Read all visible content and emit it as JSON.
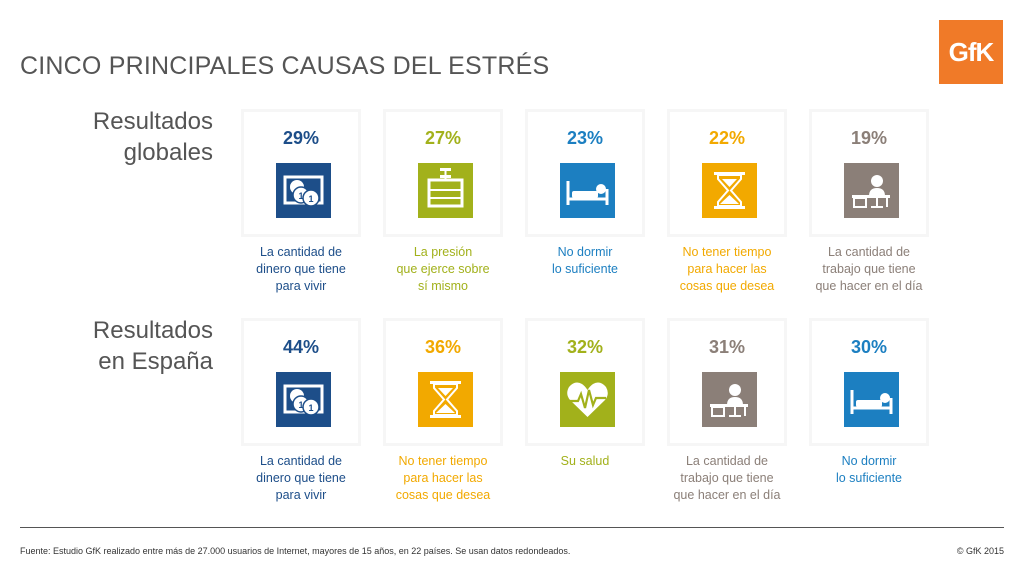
{
  "title": "CINCO PRINCIPALES CAUSAS DEL ESTRÉS",
  "logo": "GfK",
  "colors": {
    "money": "#1d4e89",
    "pressure": "#a2b11b",
    "sleep": "#1c7fc1",
    "time": "#f2a900",
    "work": "#8b7f78",
    "health": "#a2b11b"
  },
  "global": {
    "label_line1": "Resultados",
    "label_line2": "globales",
    "items": [
      {
        "pct": "29%",
        "icon": "money-icon",
        "color": "#1d4e89",
        "line1": "La cantidad de",
        "line2": "dinero que tiene",
        "line3": "para vivir"
      },
      {
        "pct": "27%",
        "icon": "pressure-icon",
        "color": "#a2b11b",
        "line1": "La presión",
        "line2": "que ejerce sobre",
        "line3": "sí mismo"
      },
      {
        "pct": "23%",
        "icon": "sleep-icon",
        "color": "#1c7fc1",
        "line1": "No dormir",
        "line2": "lo suficiente",
        "line3": ""
      },
      {
        "pct": "22%",
        "icon": "hourglass-icon",
        "color": "#f2a900",
        "line1": "No tener tiempo",
        "line2": "para hacer las",
        "line3": "cosas que desea"
      },
      {
        "pct": "19%",
        "icon": "desk-work-icon",
        "color": "#8b7f78",
        "line1": "La cantidad de",
        "line2": "trabajo que tiene",
        "line3": "que hacer en el día"
      }
    ]
  },
  "spain": {
    "label_line1": "Resultados",
    "label_line2": "en España",
    "items": [
      {
        "pct": "44%",
        "icon": "money-icon",
        "color": "#1d4e89",
        "line1": "La cantidad de",
        "line2": "dinero que tiene",
        "line3": "para vivir"
      },
      {
        "pct": "36%",
        "icon": "hourglass-icon",
        "color": "#f2a900",
        "line1": "No tener tiempo",
        "line2": "para hacer las",
        "line3": "cosas que desea"
      },
      {
        "pct": "32%",
        "icon": "heart-health-icon",
        "color": "#a2b11b",
        "line1": "Su salud",
        "line2": "",
        "line3": ""
      },
      {
        "pct": "31%",
        "icon": "desk-work-icon",
        "color": "#8b7f78",
        "line1": "La cantidad de",
        "line2": "trabajo que tiene",
        "line3": "que hacer en el día"
      },
      {
        "pct": "30%",
        "icon": "sleep-icon",
        "color": "#1c7fc1",
        "line1": "No dormir",
        "line2": "lo suficiente",
        "line3": ""
      }
    ]
  },
  "footer": "Fuente: Estudio GfK realizado entre más de 27.000 usuarios de Internet, mayores de 15 años, en 22 países. Se usan datos redondeados.",
  "copyright": "© GfK 2015"
}
